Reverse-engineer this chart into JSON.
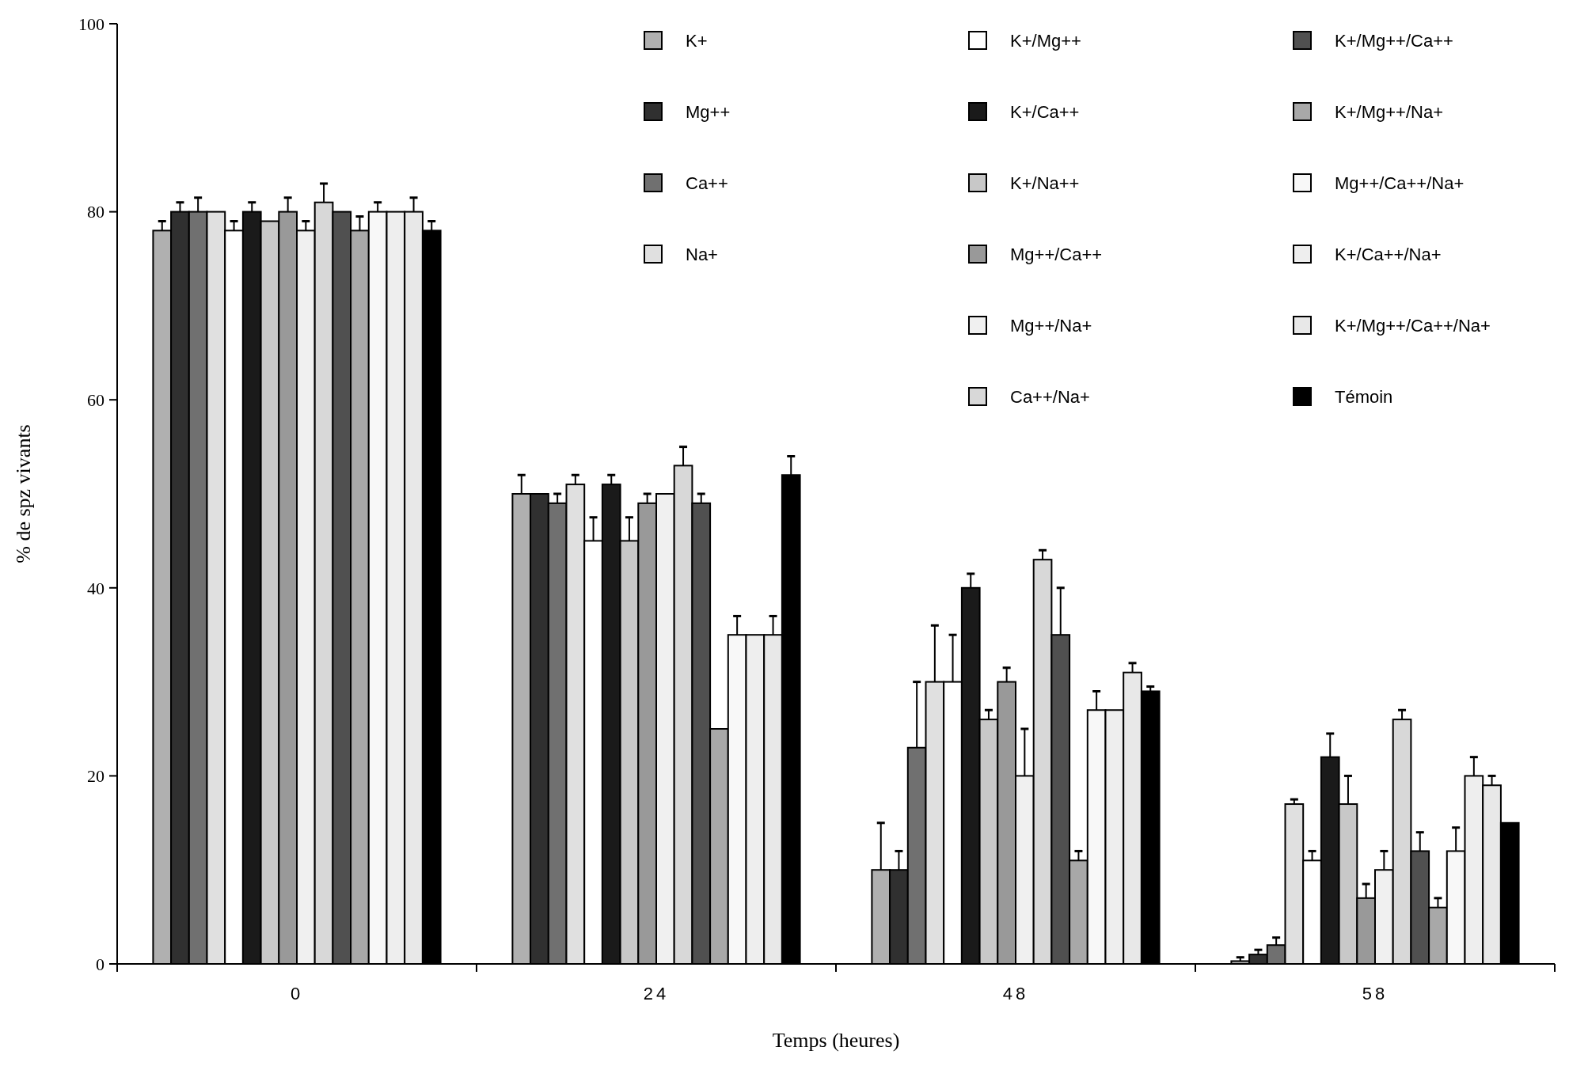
{
  "chart_data": {
    "type": "bar",
    "xlabel": "Temps (heures)",
    "ylabel": "% de spz vivants",
    "categories": [
      "0",
      "24",
      "48",
      "58"
    ],
    "ylim": [
      0,
      100
    ],
    "yticks": [
      0,
      20,
      40,
      60,
      80,
      100
    ],
    "grid": false,
    "legend": "top right",
    "series": [
      {
        "name": "K+",
        "color": "#b0b0b0",
        "values": [
          78,
          50,
          10,
          0.3
        ],
        "errors": [
          1,
          2,
          5,
          0.4
        ]
      },
      {
        "name": "Mg++",
        "color": "#303030",
        "values": [
          80,
          50,
          10,
          1
        ],
        "errors": [
          1,
          0,
          2,
          0.5
        ]
      },
      {
        "name": "Ca++",
        "color": "#707070",
        "values": [
          80,
          49,
          23,
          2
        ],
        "errors": [
          1.5,
          1,
          7,
          0.8
        ]
      },
      {
        "name": "Na+",
        "color": "#e0e0e0",
        "values": [
          80,
          51,
          30,
          17
        ],
        "errors": [
          0,
          1,
          6,
          0.5
        ]
      },
      {
        "name": "K+/Mg++",
        "color": "#ffffff",
        "values": [
          78,
          45,
          30,
          11
        ],
        "errors": [
          1,
          2.5,
          5,
          1
        ]
      },
      {
        "name": "K+/Ca++",
        "color": "#1a1a1a",
        "values": [
          80,
          51,
          40,
          22
        ],
        "errors": [
          1,
          1,
          1.5,
          2.5
        ]
      },
      {
        "name": "K+/Na++",
        "color": "#c8c8c8",
        "values": [
          79,
          45,
          26,
          17
        ],
        "errors": [
          0,
          2.5,
          1,
          3
        ]
      },
      {
        "name": "Mg++/Ca++",
        "color": "#999999",
        "values": [
          80,
          49,
          30,
          7
        ],
        "errors": [
          1.5,
          1,
          1.5,
          1.5
        ]
      },
      {
        "name": "Mg++/Na+",
        "color": "#f0f0f0",
        "values": [
          78,
          50,
          20,
          10
        ],
        "errors": [
          1,
          0,
          5,
          2
        ]
      },
      {
        "name": "Ca++/Na+",
        "color": "#d8d8d8",
        "values": [
          81,
          53,
          43,
          26
        ],
        "errors": [
          2,
          2,
          1,
          1
        ]
      },
      {
        "name": "K+/Mg++/Ca++",
        "color": "#505050",
        "values": [
          80,
          49,
          35,
          12
        ],
        "errors": [
          0,
          1,
          5,
          2
        ]
      },
      {
        "name": "K+/Mg++/Na+",
        "color": "#a8a8a8",
        "values": [
          78,
          25,
          11,
          6
        ],
        "errors": [
          1.5,
          0,
          1,
          1
        ]
      },
      {
        "name": "Mg++/Ca++/Na+",
        "color": "#f8f8f8",
        "values": [
          80,
          35,
          27,
          12
        ],
        "errors": [
          1,
          2,
          2,
          2.5
        ]
      },
      {
        "name": "K+/Ca++/Na+",
        "color": "#eeeeee",
        "values": [
          80,
          35,
          27,
          20
        ],
        "errors": [
          0,
          0,
          0,
          2
        ]
      },
      {
        "name": "K+/Mg++/Ca++/Na+",
        "color": "#e8e8e8",
        "values": [
          80,
          35,
          31,
          19
        ],
        "errors": [
          1.5,
          2,
          1,
          1
        ]
      },
      {
        "name": "Témoin",
        "color": "#000000",
        "values": [
          78,
          52,
          29,
          15
        ],
        "errors": [
          1,
          2,
          0.5,
          0
        ]
      }
    ]
  }
}
